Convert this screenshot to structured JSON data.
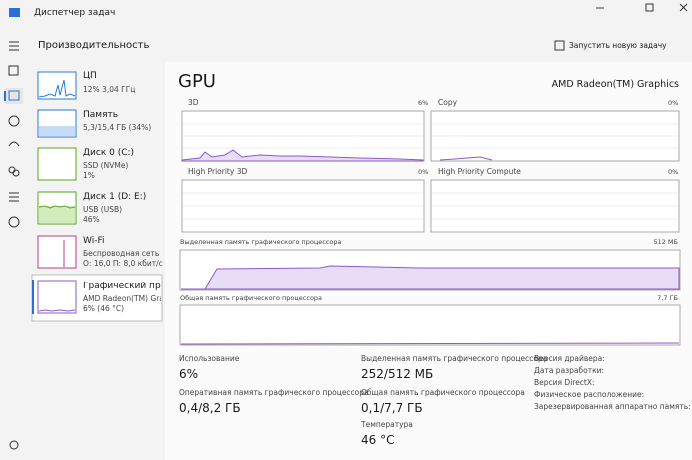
{
  "window": {
    "title": "Диспетчер задач"
  },
  "header": {
    "title": "Производительность",
    "action": "Запустить новую задачу"
  },
  "sidebar": [
    {
      "name": "ЦП",
      "detail": "12% 3,04 ГГц"
    },
    {
      "name": "Память",
      "detail": "5,3/15,4 ГБ (34%)"
    },
    {
      "name": "Диск 0 (C:)",
      "detail": "SSD (NVMe)",
      "value": "1%"
    },
    {
      "name": "Диск 1 (D: E:)",
      "detail": "USB (USB)",
      "value": "46%"
    },
    {
      "name": "Wi-Fi",
      "detail": "Беспроводная сеть",
      "value": "О: 16,0 П: 8,0 кбит/с"
    },
    {
      "name": "Графический процессор",
      "detail": "AMD Radeon(TM) Graphics",
      "value": "6% (46 °C)"
    }
  ],
  "main": {
    "title": "GPU",
    "device": "AMD Radeon(TM) Graphics",
    "engines": [
      {
        "name": "3D",
        "value": "6%"
      },
      {
        "name": "Copy",
        "value": "0%"
      },
      {
        "name": "High Priority 3D",
        "value": "0%"
      },
      {
        "name": "High Priority Compute",
        "value": "0%"
      }
    ],
    "dedicated": {
      "label": "Выделенная память графического процессора",
      "max": "512 МБ"
    },
    "shared": {
      "label": "Общая память графического процессора",
      "max": "7,7 ГБ"
    },
    "stats": [
      {
        "label": "Использование",
        "value": "6%"
      },
      {
        "label": "Оперативная память графического процессора",
        "value": "0,4/8,2 ГБ"
      },
      {
        "label": "Выделенная память графического процессора",
        "value": "252/512 МБ"
      },
      {
        "label": "Общая память графического процессора",
        "value": "0,1/7,7 ГБ"
      },
      {
        "label": "Температура",
        "value": "46 °C"
      }
    ],
    "info": [
      "Версия драйвера:",
      "Дата разработки:",
      "Версия DirectX:",
      "Физическое расположение:",
      "Зарезервированная аппаратно память:"
    ]
  }
}
